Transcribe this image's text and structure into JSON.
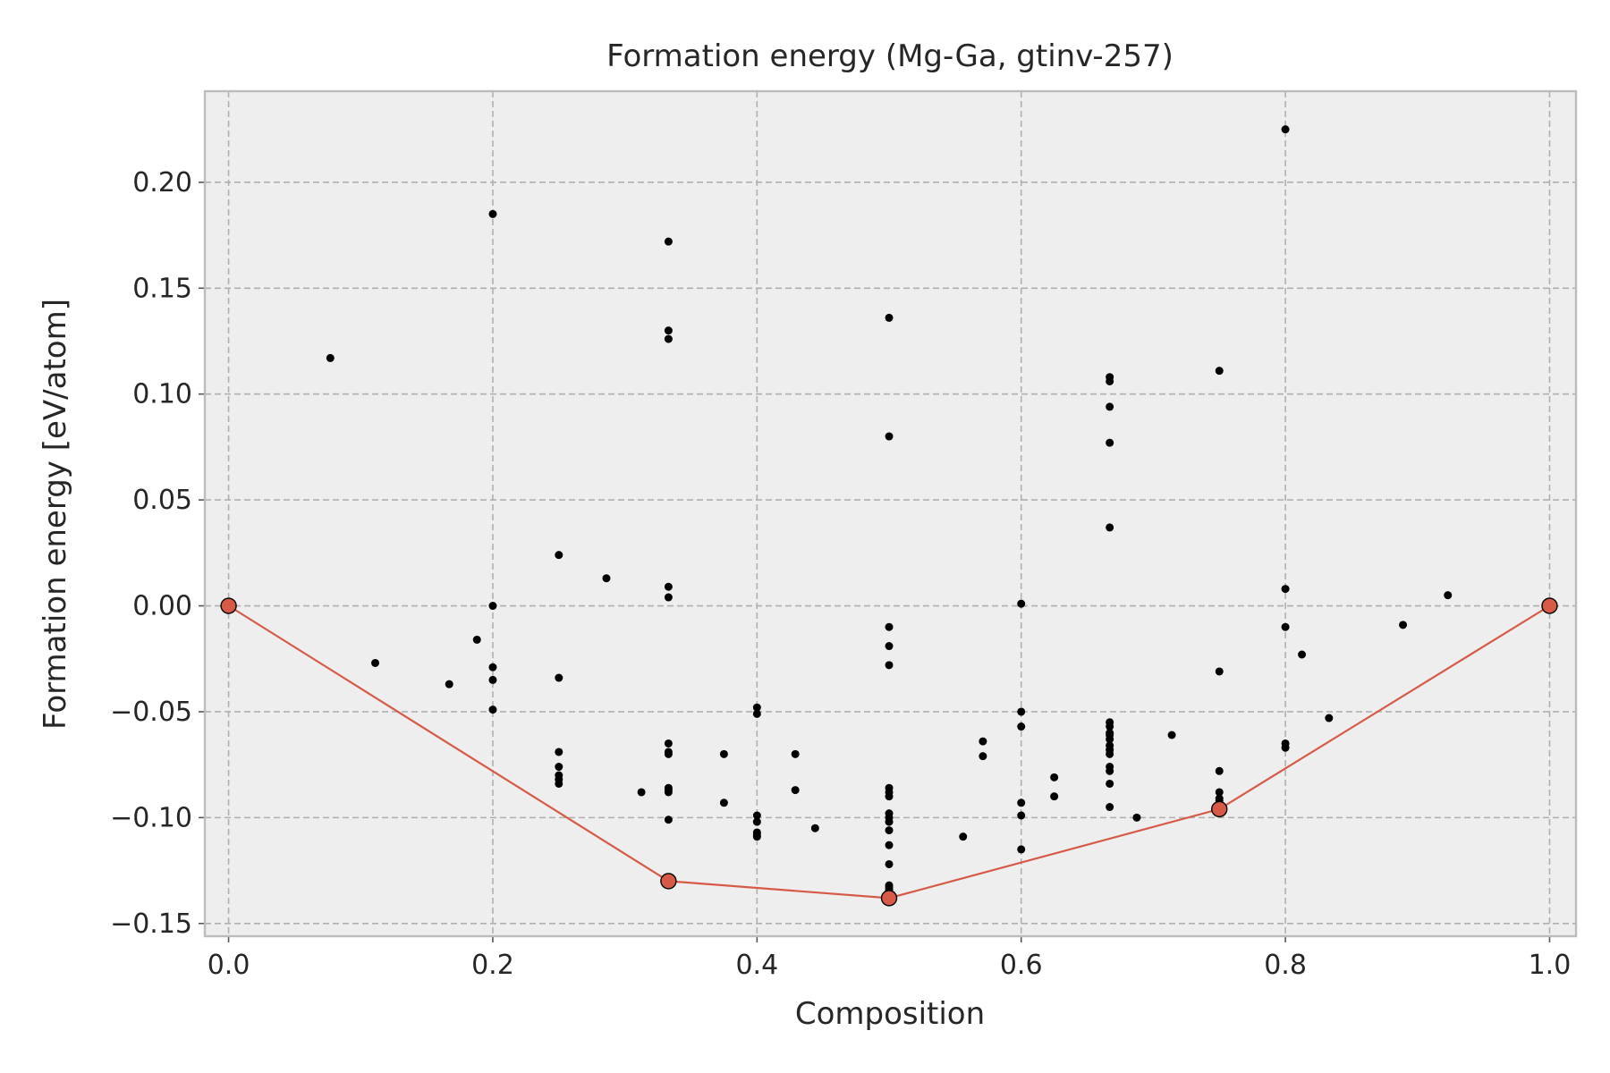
{
  "colors": {
    "hull": "#d65a46",
    "point": "#000000",
    "plot_bg": "#eeeeee"
  },
  "chart_data": {
    "type": "scatter",
    "title": "Formation energy (Mg-Ga, gtinv-257)",
    "xlabel": "Composition",
    "ylabel": "Formation energy [eV/atom]",
    "xlim": [
      -0.018,
      1.02
    ],
    "ylim": [
      -0.156,
      0.243
    ],
    "xticks": [
      0.0,
      0.2,
      0.4,
      0.6,
      0.8,
      1.0
    ],
    "xtick_labels": [
      "0.0",
      "0.2",
      "0.4",
      "0.6",
      "0.8",
      "1.0"
    ],
    "yticks": [
      -0.15,
      -0.1,
      -0.05,
      0.0,
      0.05,
      0.1,
      0.15,
      0.2
    ],
    "ytick_labels": [
      "−0.15",
      "−0.10",
      "−0.05",
      "0.00",
      "0.05",
      "0.10",
      "0.15",
      "0.20"
    ],
    "grid": true,
    "series": [
      {
        "kind": "points",
        "x": [
          0.077,
          0.111,
          0.167,
          0.188,
          0.2,
          0.2,
          0.2,
          0.2,
          0.2,
          0.25,
          0.25,
          0.25,
          0.25,
          0.25,
          0.25,
          0.25,
          0.286,
          0.3125,
          0.333,
          0.333,
          0.333,
          0.333,
          0.333,
          0.333,
          0.333,
          0.333,
          0.333,
          0.333,
          0.333,
          0.333,
          0.375,
          0.375,
          0.4,
          0.4,
          0.4,
          0.4,
          0.4,
          0.4,
          0.4,
          0.429,
          0.429,
          0.444,
          0.5,
          0.5,
          0.5,
          0.5,
          0.5,
          0.5,
          0.5,
          0.5,
          0.5,
          0.5,
          0.5,
          0.5,
          0.5,
          0.5,
          0.5,
          0.5,
          0.5,
          0.556,
          0.571,
          0.571,
          0.6,
          0.6,
          0.6,
          0.6,
          0.6,
          0.6,
          0.625,
          0.625,
          0.667,
          0.667,
          0.667,
          0.667,
          0.667,
          0.667,
          0.667,
          0.667,
          0.667,
          0.667,
          0.667,
          0.667,
          0.667,
          0.667,
          0.667,
          0.667,
          0.667,
          0.6875,
          0.714,
          0.75,
          0.75,
          0.75,
          0.75,
          0.75,
          0.75,
          0.8,
          0.8,
          0.8,
          0.8,
          0.8,
          0.8125,
          0.833,
          0.889,
          0.923
        ],
        "y": [
          0.117,
          -0.027,
          -0.037,
          -0.016,
          0.185,
          0.0,
          -0.029,
          -0.035,
          -0.049,
          0.024,
          -0.034,
          -0.069,
          -0.076,
          -0.08,
          -0.084,
          -0.082,
          0.013,
          -0.088,
          0.172,
          0.13,
          0.126,
          0.009,
          0.004,
          -0.065,
          -0.069,
          -0.07,
          -0.086,
          -0.088,
          -0.087,
          -0.101,
          -0.07,
          -0.093,
          -0.048,
          -0.051,
          -0.099,
          -0.102,
          -0.107,
          -0.109,
          -0.108,
          -0.07,
          -0.087,
          -0.105,
          0.136,
          0.08,
          -0.01,
          -0.019,
          -0.028,
          -0.086,
          -0.088,
          -0.09,
          -0.098,
          -0.1,
          -0.102,
          -0.106,
          -0.113,
          -0.122,
          -0.133,
          -0.132,
          -0.134,
          -0.109,
          -0.064,
          -0.071,
          0.001,
          -0.05,
          -0.057,
          -0.093,
          -0.099,
          -0.115,
          -0.081,
          -0.09,
          0.108,
          0.106,
          0.094,
          0.077,
          0.037,
          -0.055,
          -0.057,
          -0.06,
          -0.063,
          -0.066,
          -0.068,
          -0.07,
          -0.076,
          -0.078,
          -0.084,
          -0.095,
          -0.061,
          -0.1,
          -0.061,
          0.111,
          -0.031,
          -0.078,
          -0.088,
          -0.092,
          -0.091,
          0.225,
          0.008,
          -0.01,
          -0.065,
          -0.067,
          -0.023,
          -0.053,
          -0.009,
          0.005
        ]
      },
      {
        "kind": "hull",
        "x": [
          0.0,
          0.333,
          0.5,
          0.75,
          1.0
        ],
        "y": [
          0.0,
          -0.13,
          -0.138,
          -0.096,
          0.0
        ]
      }
    ]
  }
}
